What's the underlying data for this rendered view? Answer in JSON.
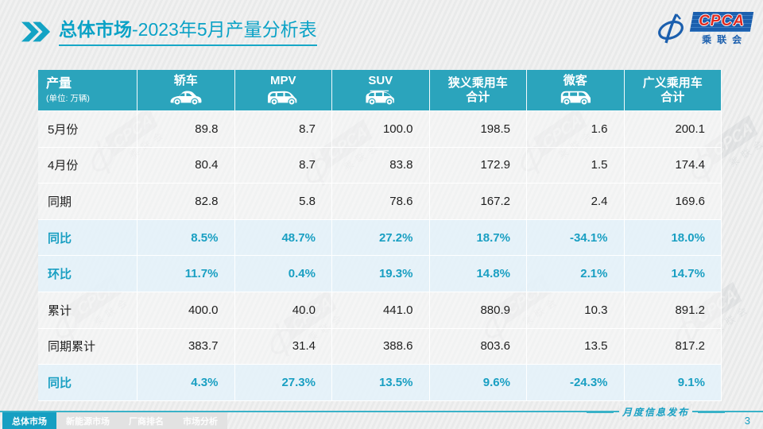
{
  "header": {
    "title_main": "总体市场",
    "title_rest": "-2023年5月产量分析表"
  },
  "logo": {
    "acronym": "CPCA",
    "chinese": "乘联会"
  },
  "colors": {
    "accent_teal": "#0aa2c6",
    "table_header_bg": "#2ba4bc",
    "highlight_row_bg": "#e4f2f9",
    "highlight_text": "#199fc2",
    "logo_blue": "#1b5fae",
    "logo_red": "#e02a20"
  },
  "table": {
    "corner_label": "产量",
    "unit_note": "(单位: 万辆)",
    "columns": [
      {
        "label": "轿车",
        "icon": "sedan-icon"
      },
      {
        "label": "MPV",
        "icon": "mpv-icon"
      },
      {
        "label": "SUV",
        "icon": "suv-icon"
      },
      {
        "label": "狭义乘用车",
        "label_line2": "合计"
      },
      {
        "label": "微客",
        "icon": "microvan-icon"
      },
      {
        "label": "广义乘用车",
        "label_line2": "合计"
      }
    ],
    "rows": [
      {
        "label": "5月份",
        "type": "normal",
        "values": [
          "89.8",
          "8.7",
          "100.0",
          "198.5",
          "1.6",
          "200.1"
        ]
      },
      {
        "label": "4月份",
        "type": "normal",
        "values": [
          "80.4",
          "8.7",
          "83.8",
          "172.9",
          "1.5",
          "174.4"
        ]
      },
      {
        "label": "同期",
        "type": "normal",
        "values": [
          "82.8",
          "5.8",
          "78.6",
          "167.2",
          "2.4",
          "169.6"
        ]
      },
      {
        "label": "同比",
        "type": "highlight",
        "values": [
          "8.5%",
          "48.7%",
          "27.2%",
          "18.7%",
          "-34.1%",
          "18.0%"
        ]
      },
      {
        "label": "环比",
        "type": "highlight",
        "values": [
          "11.7%",
          "0.4%",
          "19.3%",
          "14.8%",
          "2.1%",
          "14.7%"
        ]
      },
      {
        "label": "累计",
        "type": "normal",
        "values": [
          "400.0",
          "40.0",
          "441.0",
          "880.9",
          "10.3",
          "891.2"
        ]
      },
      {
        "label": "同期累计",
        "type": "normal",
        "values": [
          "383.7",
          "31.4",
          "388.6",
          "803.6",
          "13.5",
          "817.2"
        ]
      },
      {
        "label": "同比",
        "type": "highlight",
        "values": [
          "4.3%",
          "27.3%",
          "13.5%",
          "9.6%",
          "-24.3%",
          "9.1%"
        ]
      }
    ]
  },
  "footer": {
    "tabs": [
      {
        "label": "总体市场",
        "active": true
      },
      {
        "label": "新能源市场",
        "active": false
      },
      {
        "label": "厂商排名",
        "active": false
      },
      {
        "label": "市场分析",
        "active": false
      }
    ],
    "note": "月度信息发布",
    "page_number": "3"
  },
  "watermark_text": "CPCA"
}
